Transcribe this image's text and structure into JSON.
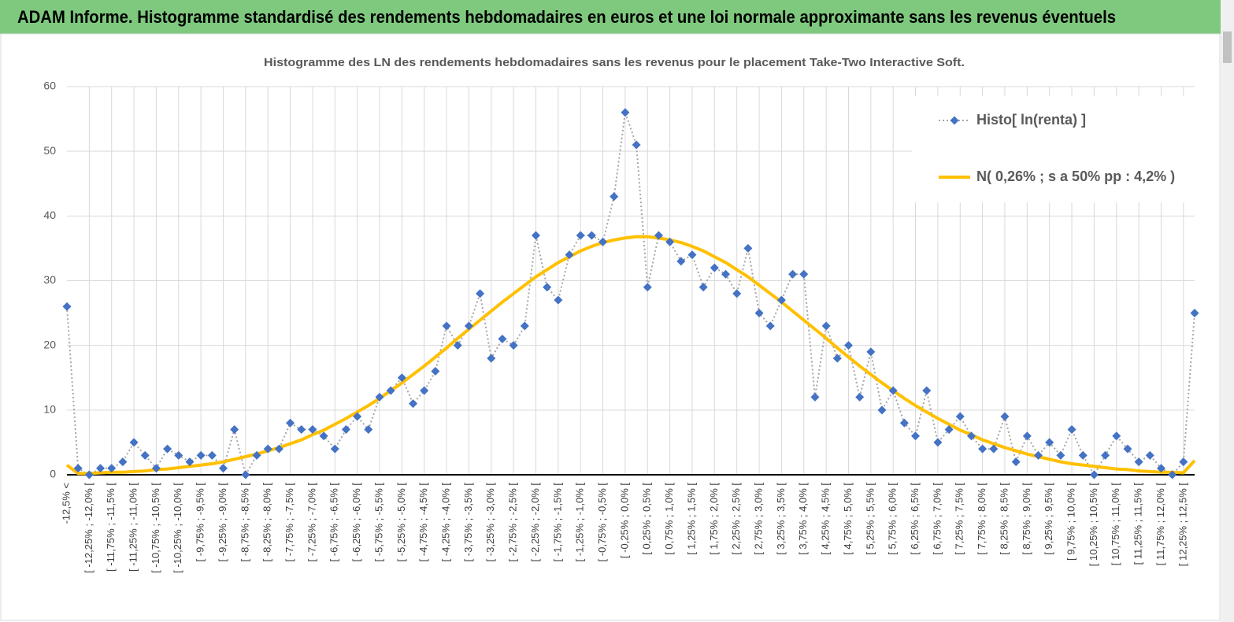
{
  "header": {
    "title": "ADAM Informe. Histogramme standardisé des rendements hebdomadaires en euros et une loi normale approximante sans les revenus éventuels"
  },
  "chart_data": {
    "type": "line",
    "title": "Histogramme des LN des rendements hebdomadaires sans les revenus pour le placement Take-Two Interactive Soft.",
    "categories": [
      "-12,5% <",
      null,
      "[ -12,25% ; -12,0% [",
      null,
      "[ -11,75% ; -11,5% [",
      null,
      "[ -11,25% ; -11,0% [",
      null,
      "[ -10,75% ; -10,5% [",
      null,
      "[ -10,25% ; -10,0% [",
      null,
      "[ -9,75% ; -9,5% [",
      null,
      "[ -9,25% ; -9,0% [",
      null,
      "[ -8,75% ; -8,5% [",
      null,
      "[ -8,25% ; -8,0% [",
      null,
      "[ -7,75% ; -7,5% [",
      null,
      "[ -7,25% ; -7,0% [",
      null,
      "[ -6,75% ; -6,5% [",
      null,
      "[ -6,25% ; -6,0% [",
      null,
      "[ -5,75% ; -5,5% [",
      null,
      "[ -5,25% ; -5,0% [",
      null,
      "[ -4,75% ; -4,5% [",
      null,
      "[ -4,25% ; -4,0% [",
      null,
      "[ -3,75% ; -3,5% [",
      null,
      "[ -3,25% ; -3,0% [",
      null,
      "[ -2,75% ; -2,5% [",
      null,
      "[ -2,25% ; -2,0% [",
      null,
      "[ -1,75% ; -1,5% [",
      null,
      "[ -1,25% ; -1,0% [",
      null,
      "[ -0,75% ; -0,5% [",
      null,
      "[ -0,25% ; 0,0% [",
      null,
      "[ 0,25% ; 0,5% [",
      null,
      "[ 0,75% ; 1,0% [",
      null,
      "[ 1,25% ; 1,5% [",
      null,
      "[ 1,75% ; 2,0% [",
      null,
      "[ 2,25% ; 2,5% [",
      null,
      "[ 2,75% ; 3,0% [",
      null,
      "[ 3,25% ; 3,5% [",
      null,
      "[ 3,75% ; 4,0% [",
      null,
      "[ 4,25% ; 4,5% [",
      null,
      "[ 4,75% ; 5,0% [",
      null,
      "[ 5,25% ; 5,5% [",
      null,
      "[ 5,75% ; 6,0% [",
      null,
      "[ 6,25% ; 6,5% [",
      null,
      "[ 6,75% ; 7,0% [",
      null,
      "[ 7,25% ; 7,5% [",
      null,
      "[ 7,75% ; 8,0% [",
      null,
      "[ 8,25% ; 8,5% [",
      null,
      "[ 8,75% ; 9,0% [",
      null,
      "[ 9,25% ; 9,5% [",
      null,
      "[ 9,75% ; 10,0% [",
      null,
      "[ 10,25% ; 10,5% [",
      null,
      "[ 10,75% ; 11,0% [",
      null,
      "[ 11,25% ; 11,5% [",
      null,
      "[ 11,75% ; 12,0% [",
      null,
      "[ 12,25% ; 12,5% [",
      null
    ],
    "series": [
      {
        "name": "Histo[ ln(renta) ]",
        "color": "#4472c4",
        "line_color": "#a6a6a6",
        "values": [
          26,
          1,
          0,
          1,
          1,
          2,
          5,
          3,
          1,
          4,
          3,
          2,
          3,
          3,
          1,
          7,
          0,
          3,
          4,
          4,
          8,
          7,
          7,
          6,
          4,
          7,
          9,
          7,
          12,
          13,
          15,
          11,
          13,
          16,
          23,
          20,
          23,
          28,
          18,
          21,
          20,
          23,
          37,
          29,
          27,
          34,
          37,
          37,
          36,
          43,
          56,
          51,
          29,
          37,
          36,
          33,
          34,
          29,
          32,
          31,
          28,
          35,
          25,
          23,
          27,
          31,
          31,
          12,
          23,
          18,
          20,
          12,
          19,
          10,
          13,
          8,
          6,
          13,
          5,
          7,
          9,
          6,
          4,
          4,
          9,
          2,
          6,
          3,
          5,
          3,
          7,
          3,
          0,
          3,
          6,
          4,
          2,
          3,
          1,
          0,
          2,
          25
        ]
      },
      {
        "name": "N( 0,26% ; s a 50% pp : 4,2% )",
        "color": "#ffc000",
        "values": [
          1.5,
          0.2,
          0.2,
          0.3,
          0.4,
          0.4,
          0.5,
          0.6,
          0.8,
          0.9,
          1.1,
          1.3,
          1.5,
          1.7,
          2.0,
          2.4,
          2.8,
          3.2,
          3.7,
          4.2,
          4.8,
          5.4,
          6.2,
          6.9,
          7.8,
          8.7,
          9.7,
          10.7,
          11.8,
          13.0,
          14.2,
          15.5,
          16.8,
          18.2,
          19.6,
          21.1,
          22.5,
          23.9,
          25.3,
          26.7,
          28.0,
          29.3,
          30.6,
          31.7,
          32.8,
          33.7,
          34.6,
          35.3,
          35.9,
          36.3,
          36.6,
          36.8,
          36.8,
          36.6,
          36.3,
          35.9,
          35.3,
          34.6,
          33.7,
          32.8,
          31.7,
          30.6,
          29.3,
          28.0,
          26.7,
          25.3,
          23.9,
          22.5,
          21.1,
          19.6,
          18.2,
          16.8,
          15.5,
          14.2,
          13.0,
          11.8,
          10.7,
          9.7,
          8.7,
          7.8,
          6.9,
          6.2,
          5.4,
          4.8,
          4.2,
          3.7,
          3.2,
          2.8,
          2.4,
          2.0,
          1.7,
          1.5,
          1.3,
          1.1,
          0.9,
          0.8,
          0.6,
          0.5,
          0.4,
          0.4,
          0.3,
          2.2
        ]
      }
    ],
    "ylim": [
      0,
      60
    ],
    "yticks": [
      0,
      10,
      20,
      30,
      40,
      50,
      60
    ],
    "grid": true,
    "legend": "top-right"
  }
}
